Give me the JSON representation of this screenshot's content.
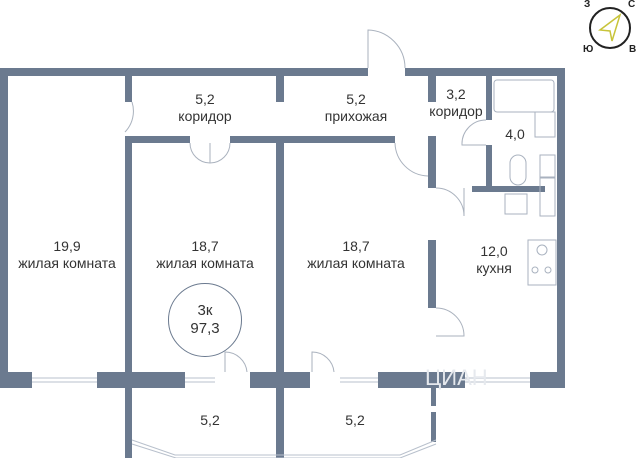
{
  "colors": {
    "wall": "#6b7a8f",
    "fixture": "#a9b2bf",
    "text": "#333333"
  },
  "compass": {
    "west": "З",
    "north": "С",
    "south": "Ю",
    "east": "В",
    "icon": "compass-arrow-icon"
  },
  "apartment": {
    "type": "3к",
    "total_area": "97,3"
  },
  "rooms": [
    {
      "area": "19,9",
      "name": "жилая комната"
    },
    {
      "area": "18,7",
      "name": "жилая комната"
    },
    {
      "area": "18,7",
      "name": "жилая комната"
    },
    {
      "area": "5,2",
      "name": "коридор"
    },
    {
      "area": "5,2",
      "name": "прихожая"
    },
    {
      "area": "3,2",
      "name": "коридор"
    },
    {
      "area": "4,0",
      "name": ""
    },
    {
      "area": "12,0",
      "name": "кухня"
    },
    {
      "area": "5,2",
      "name": ""
    },
    {
      "area": "5,2",
      "name": ""
    }
  ],
  "watermark": "ЦИАН"
}
